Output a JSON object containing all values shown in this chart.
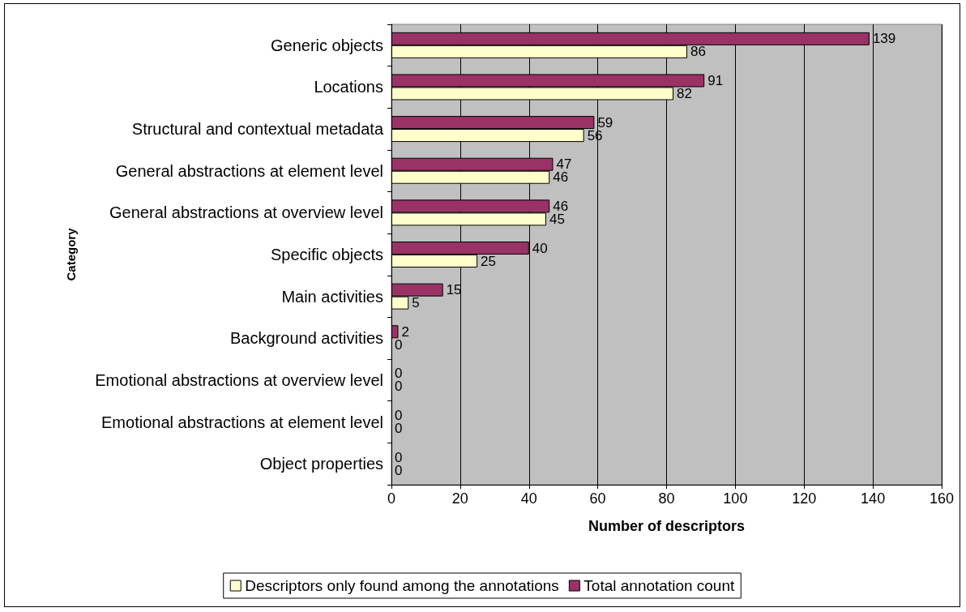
{
  "chart_data": {
    "type": "bar",
    "orientation": "horizontal",
    "xlabel": "Number of descriptors",
    "ylabel": "Category",
    "categories": [
      "Generic objects",
      "Locations",
      "Structural and contextual metadata",
      "General abstractions at element level",
      "General abstractions at overview level",
      "Specific objects",
      "Main activities",
      "Background activities",
      "Emotional abstractions at overview level",
      "Emotional abstractions at element level",
      "Object properties"
    ],
    "series": [
      {
        "name": "Total annotation count",
        "color": "#993366",
        "values": [
          139,
          91,
          59,
          47,
          46,
          40,
          15,
          2,
          0,
          0,
          0
        ]
      },
      {
        "name": "Descriptors only found among the annotations",
        "color": "#ffffcc",
        "values": [
          86,
          82,
          56,
          46,
          45,
          25,
          5,
          0,
          0,
          0,
          0
        ]
      }
    ],
    "xlim": [
      0,
      160
    ],
    "xticks": [
      0,
      20,
      40,
      60,
      80,
      100,
      120,
      140,
      160
    ],
    "grid": "x",
    "legend": "bottom",
    "data_labels": true
  }
}
